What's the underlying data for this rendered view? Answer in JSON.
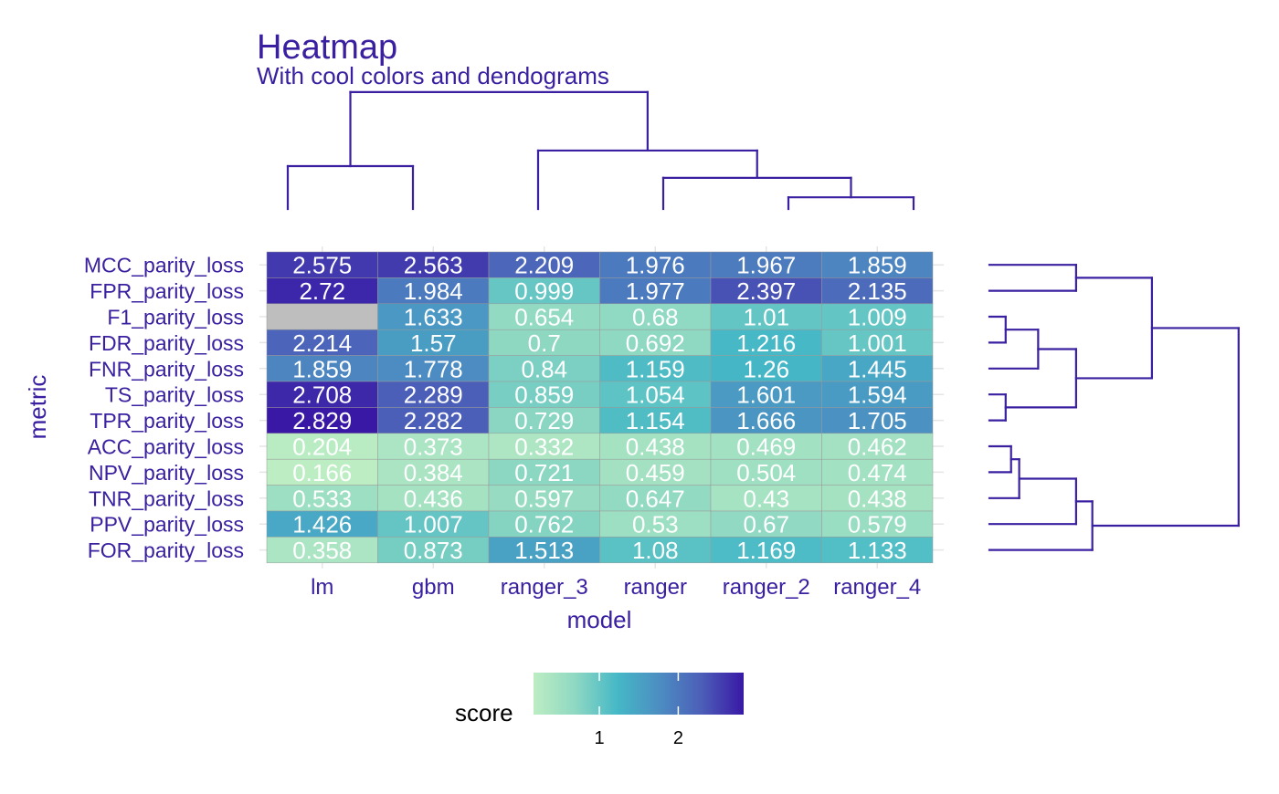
{
  "chart_data": {
    "type": "heatmap",
    "title": "Heatmap",
    "subtitle": "With cool colors and dendograms",
    "xlabel": "model",
    "ylabel": "metric",
    "x_categories": [
      "lm",
      "gbm",
      "ranger_3",
      "ranger",
      "ranger_2",
      "ranger_4"
    ],
    "y_categories": [
      "MCC_parity_loss",
      "FPR_parity_loss",
      "F1_parity_loss",
      "FDR_parity_loss",
      "FNR_parity_loss",
      "TS_parity_loss",
      "TPR_parity_loss",
      "ACC_parity_loss",
      "NPV_parity_loss",
      "TNR_parity_loss",
      "PPV_parity_loss",
      "FOR_parity_loss"
    ],
    "values": [
      [
        2.575,
        2.563,
        2.209,
        1.976,
        1.967,
        1.859
      ],
      [
        2.72,
        1.984,
        0.999,
        1.977,
        2.397,
        2.135
      ],
      [
        null,
        1.633,
        0.654,
        0.68,
        1.01,
        1.009
      ],
      [
        2.214,
        1.57,
        0.7,
        0.692,
        1.216,
        1.001
      ],
      [
        1.859,
        1.778,
        0.84,
        1.159,
        1.26,
        1.445
      ],
      [
        2.708,
        2.289,
        0.859,
        1.054,
        1.601,
        1.594
      ],
      [
        2.829,
        2.282,
        0.729,
        1.154,
        1.666,
        1.705
      ],
      [
        0.204,
        0.373,
        0.332,
        0.438,
        0.469,
        0.462
      ],
      [
        0.166,
        0.384,
        0.721,
        0.459,
        0.504,
        0.474
      ],
      [
        0.533,
        0.436,
        0.597,
        0.647,
        0.43,
        0.438
      ],
      [
        1.426,
        1.007,
        0.762,
        0.53,
        0.67,
        0.579
      ],
      [
        0.358,
        0.873,
        1.513,
        1.08,
        1.169,
        1.133
      ]
    ],
    "cell_labels": [
      [
        "2.575",
        "2.563",
        "2.209",
        "1.976",
        "1.967",
        "1.859"
      ],
      [
        "2.72",
        "1.984",
        "0.999",
        "1.977",
        "2.397",
        "2.135"
      ],
      [
        "",
        "1.633",
        "0.654",
        "0.68",
        "1.01",
        "1.009"
      ],
      [
        "2.214",
        "1.57",
        "0.7",
        "0.692",
        "1.216",
        "1.001"
      ],
      [
        "1.859",
        "1.778",
        "0.84",
        "1.159",
        "1.26",
        "1.445"
      ],
      [
        "2.708",
        "2.289",
        "0.859",
        "1.054",
        "1.601",
        "1.594"
      ],
      [
        "2.829",
        "2.282",
        "0.729",
        "1.154",
        "1.666",
        "1.705"
      ],
      [
        "0.204",
        "0.373",
        "0.332",
        "0.438",
        "0.469",
        "0.462"
      ],
      [
        "0.166",
        "0.384",
        "0.721",
        "0.459",
        "0.504",
        "0.474"
      ],
      [
        "0.533",
        "0.436",
        "0.597",
        "0.647",
        "0.43",
        "0.438"
      ],
      [
        "1.426",
        "1.007",
        "0.762",
        "0.53",
        "0.67",
        "0.579"
      ],
      [
        "0.358",
        "0.873",
        "1.513",
        "1.08",
        "1.169",
        "1.133"
      ]
    ],
    "color_scale": {
      "domain": [
        0.166,
        2.829
      ],
      "colors": [
        "#bdedc3",
        "#8ed8c2",
        "#45b8c6",
        "#4c8dc2",
        "#4c5eb8",
        "#3818a5"
      ],
      "missing_color": "#bebebe"
    },
    "legend": {
      "title": "score",
      "ticks": [
        1,
        2
      ],
      "tick_labels": [
        "1",
        "2"
      ],
      "placement": "bottom"
    },
    "dendrogram_columns": {
      "merges": [
        {
          "left": "ranger_2",
          "right": "ranger_4",
          "height": 0.3
        },
        {
          "left": "ranger",
          "right": "ranger_2+ranger_4",
          "height": 0.8
        },
        {
          "left": "ranger_3",
          "right": "ranger+ranger_2+ranger_4",
          "height": 1.5
        },
        {
          "left": "lm",
          "right": "gbm",
          "height": 1.1
        },
        {
          "left": "lm+gbm",
          "right": "ranger_3+ranger+ranger_2+ranger_4",
          "height": 3.0
        }
      ]
    },
    "dendrogram_rows": {
      "merges": [
        {
          "left": "F1_parity_loss",
          "right": "FDR_parity_loss",
          "height": 0.3
        },
        {
          "left": "TS_parity_loss",
          "right": "TPR_parity_loss",
          "height": 0.3
        },
        {
          "left": "F1_parity_loss+FDR_parity_loss",
          "right": "FNR_parity_loss",
          "height": 0.9
        },
        {
          "left": "F1_parity_loss+FDR_parity_loss+FNR_parity_loss",
          "right": "TS_parity_loss+TPR_parity_loss",
          "height": 1.6
        },
        {
          "left": "ACC_parity_loss",
          "right": "NPV_parity_loss",
          "height": 0.4
        },
        {
          "left": "ACC_parity_loss+NPV_parity_loss",
          "right": "TNR_parity_loss",
          "height": 0.55
        },
        {
          "left": "ACC_parity_loss+NPV_parity_loss+TNR_parity_loss",
          "right": "PPV_parity_loss",
          "height": 1.6
        },
        {
          "left": "ACC_parity_loss+NPV_parity_loss+TNR_parity_loss+PPV_parity_loss",
          "right": "FOR_parity_loss",
          "height": 1.9
        },
        {
          "left": "MCC_parity_loss",
          "right": "FPR_parity_loss",
          "height": 1.6
        },
        {
          "left": "F1_parity_loss+FDR_parity_loss+FNR_parity_loss+TS_parity_loss+TPR_parity_loss",
          "right": "MCC_parity_loss+FPR_parity_loss",
          "height": 3.0
        },
        {
          "left": "F1_parity_loss+FDR_parity_loss+FNR_parity_loss+TS_parity_loss+TPR_parity_loss+MCC_parity_loss+FPR_parity_loss",
          "right": "ACC_parity_loss+NPV_parity_loss+TNR_parity_loss+PPV_parity_loss+FOR_parity_loss",
          "height": 4.6
        }
      ]
    },
    "grid": true,
    "colors": {
      "text_accent": "#3a20a0",
      "dendrogram": "#3a20a0",
      "cell_text": "#ffffff",
      "cell_border": "#9a9a9a",
      "grid": "#e5e5e5"
    }
  }
}
